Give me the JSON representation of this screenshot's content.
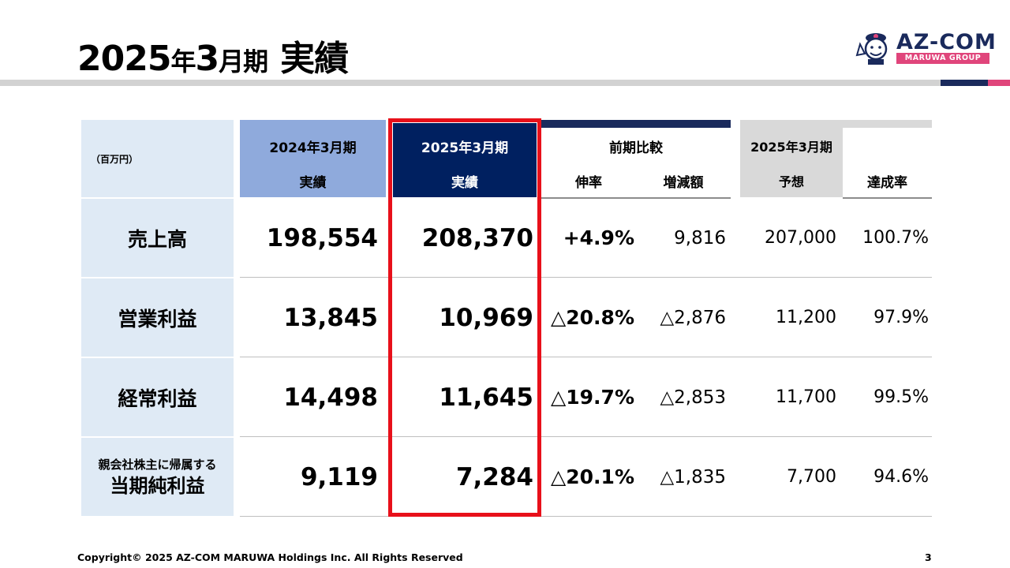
{
  "title": {
    "year": "2025",
    "nen": "年",
    "month": "3",
    "period": "月期",
    "suffix": "実績"
  },
  "logo": {
    "text": "AZ-COM",
    "sub": "MARUWA GROUP"
  },
  "table": {
    "unit": "（百万円）",
    "headers": {
      "col1_top": "2024年3月期",
      "col1_bottom": "実績",
      "col2_top": "2025年3月期",
      "col2_bottom": "実績",
      "comparison_top": "前期比較",
      "growth_rate": "伸率",
      "change_amount": "増減額",
      "forecast_top": "2025年3月期",
      "forecast_bottom": "予想",
      "achievement_rate": "達成率"
    },
    "rows": [
      {
        "label": "売上高",
        "label_small": "",
        "fy2024": "198,554",
        "fy2025": "208,370",
        "growth": "+4.9%",
        "change": "9,816",
        "forecast": "207,000",
        "achievement": "100.7%"
      },
      {
        "label": "営業利益",
        "label_small": "",
        "fy2024": "13,845",
        "fy2025": "10,969",
        "growth": "△20.8%",
        "change": "△2,876",
        "forecast": "11,200",
        "achievement": "97.9%"
      },
      {
        "label": "経常利益",
        "label_small": "",
        "fy2024": "14,498",
        "fy2025": "11,645",
        "growth": "△19.7%",
        "change": "△2,853",
        "forecast": "11,700",
        "achievement": "99.5%"
      },
      {
        "label": "当期純利益",
        "label_small": "親会社株主に帰属する",
        "fy2024": "9,119",
        "fy2025": "7,284",
        "growth": "△20.1%",
        "change": "△1,835",
        "forecast": "7,700",
        "achievement": "94.6%"
      }
    ]
  },
  "footer": {
    "copyright": "Copyright© 2025 AZ-COM MARUWA Holdings Inc. All Rights Reserved",
    "page": "3"
  },
  "colors": {
    "accent_red": "#e8101a",
    "navy": "#002060",
    "pink": "#e0457b",
    "header_blue": "#8faadc",
    "label_bg": "#dfeaf5",
    "gray": "#d9d9d9"
  }
}
